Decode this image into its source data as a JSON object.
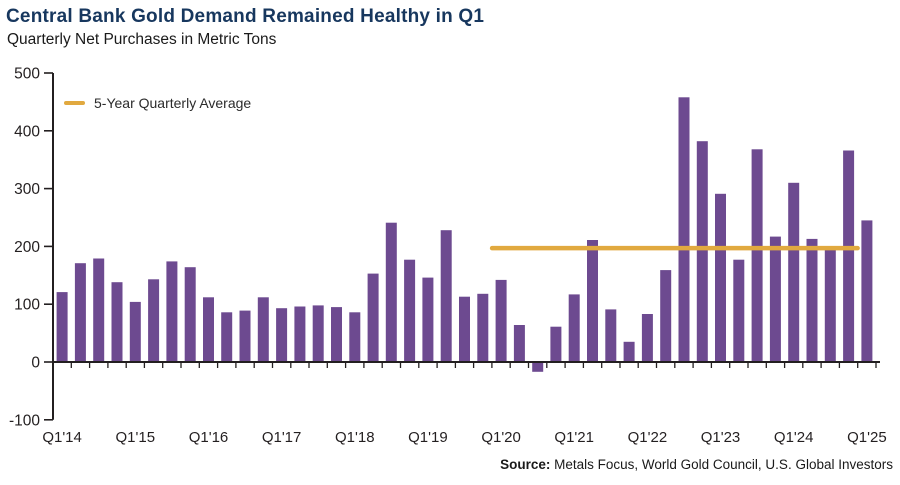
{
  "header": {
    "title": "Central Bank Gold Demand Remained Healthy in Q1",
    "subtitle": "Quarterly Net Purchases in Metric Tons"
  },
  "legend": {
    "label": "5-Year Quarterly Average"
  },
  "source": {
    "prefix": "Source:",
    "rest": " Metals Focus, World Gold Council, U.S. Global Investors"
  },
  "colors": {
    "bar": "#6D4A90",
    "average_line": "#E1A93F",
    "title": "#17375E",
    "axis": "#231F20"
  },
  "chart_data": {
    "type": "bar",
    "title": "Central Bank Gold Demand Remained Healthy in Q1",
    "subtitle": "Quarterly Net Purchases in Metric Tons",
    "ylabel": "Metric Tons",
    "ylim": [
      -100,
      500
    ],
    "y_ticks": [
      500,
      400,
      300,
      200,
      100,
      0,
      -100
    ],
    "grid": false,
    "legend_position": "top-left",
    "x": [
      "Q1'14",
      "Q2'14",
      "Q3'14",
      "Q4'14",
      "Q1'15",
      "Q2'15",
      "Q3'15",
      "Q4'15",
      "Q1'16",
      "Q2'16",
      "Q3'16",
      "Q4'16",
      "Q1'17",
      "Q2'17",
      "Q3'17",
      "Q4'17",
      "Q1'18",
      "Q2'18",
      "Q3'18",
      "Q4'18",
      "Q1'19",
      "Q2'19",
      "Q3'19",
      "Q4'19",
      "Q1'20",
      "Q2'20",
      "Q3'20",
      "Q4'20",
      "Q1'21",
      "Q2'21",
      "Q3'21",
      "Q4'21",
      "Q1'22",
      "Q2'22",
      "Q3'22",
      "Q4'22",
      "Q1'23",
      "Q2'23",
      "Q3'23",
      "Q4'23",
      "Q1'24",
      "Q2'24",
      "Q3'24",
      "Q4'24",
      "Q1'25"
    ],
    "values": [
      121,
      171,
      179,
      138,
      104,
      143,
      174,
      164,
      112,
      86,
      89,
      112,
      93,
      96,
      98,
      95,
      86,
      153,
      241,
      177,
      146,
      228,
      113,
      118,
      142,
      64,
      -17,
      61,
      117,
      211,
      91,
      35,
      83,
      159,
      458,
      382,
      291,
      177,
      368,
      217,
      310,
      213,
      199,
      366,
      245
    ],
    "x_tick_labels": [
      "Q1'14",
      "Q1'15",
      "Q1'16",
      "Q1'17",
      "Q1'18",
      "Q1'19",
      "Q1'20",
      "Q1'21",
      "Q1'22",
      "Q1'23",
      "Q1'24",
      "Q1'25"
    ],
    "average_line": {
      "label": "5-Year Quarterly Average",
      "value": 197,
      "span": [
        "Q1'20",
        "Q4'24"
      ]
    }
  }
}
